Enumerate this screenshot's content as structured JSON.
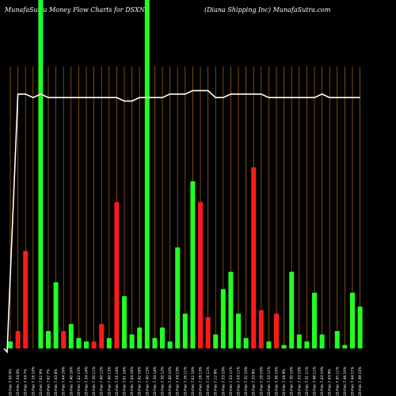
{
  "chart_data": {
    "type": "bar",
    "title": "MunafaSutra  Money Flow  Charts for DSXN",
    "subtitle": "(Diana  Shipping Inc) MunafaSutra.com",
    "colors": {
      "up": "#22ff22",
      "down": "#ff1a1a",
      "grid": "#b06a18",
      "line": "#ffffff",
      "background": "#000000"
    },
    "grid": true,
    "ylim": [
      0,
      100
    ],
    "categories": [
      "20-Feb 7.00 0%",
      "20-Feb 7.04 0%",
      "20-Feb 7.54 7%",
      "20-Feb 7.28 10%",
      "20-Feb 7.62 6%",
      "20-Feb 7.62 7%",
      "20-Feb 7.43 8%",
      "20-Feb 7.44 16%",
      "20-Feb 7.40 16%",
      "20-Feb 7.42 15%",
      "20-Feb 7.34 14%",
      "20-Feb 7.30 11%",
      "20-Feb 7.40 12%",
      "20-Feb 7.40 13%",
      "20-Feb 7.26 14%",
      "20-Feb 7.61 16%",
      "20-Feb 7.44 16%",
      "20-Feb 7.42 16%",
      "20-Feb 7.40 15%",
      "20-Feb 7.34 14%",
      "20-Feb 7.30 12%",
      "20-Feb 7.40 10%",
      "20-Feb 7.34 13%",
      "20-Feb 7.26 11%",
      "20-Feb 7.62 16%",
      "20-Feb 7.28 13%",
      "20-Feb 7.16 11%",
      "20-Feb 7.12 9%",
      "20-Feb 7.33 10%",
      "20-Feb 7.33 11%",
      "20-Feb 7.54 11%",
      "20-Feb 7.32 10%",
      "20-Feb 7.33 9%",
      "20-Feb 7.29 10%",
      "20-Feb 7.33 11%",
      "20-Feb 7.36 10%",
      "20-Feb 7.38 9%",
      "20-Feb 7.30 10%",
      "20-Feb 7.33 10%",
      "20-Feb 7.31 11%",
      "20-Feb 7.46 11%",
      "20-Feb 7.43 10%",
      "20-Feb 7.43 9%",
      "20-Feb 7.45 11%",
      "20-Feb 7.46 10%",
      "20-Feb 7.44 11%",
      "20-Feb 7.49 10%"
    ],
    "values": [
      2,
      5,
      28,
      0,
      100,
      5,
      19,
      5,
      7,
      3,
      2,
      2,
      7,
      3,
      42,
      15,
      4,
      6,
      100,
      3,
      6,
      2,
      29,
      10,
      48,
      42,
      9,
      4,
      17,
      22,
      10,
      3,
      52,
      11,
      2,
      10,
      1,
      22,
      4,
      2,
      16,
      4,
      0,
      5,
      1,
      16,
      12
    ],
    "direction": [
      "up",
      "down",
      "down",
      "up",
      "up",
      "up",
      "up",
      "down",
      "up",
      "up",
      "up",
      "down",
      "down",
      "up",
      "down",
      "up",
      "up",
      "up",
      "up",
      "up",
      "up",
      "up",
      "up",
      "up",
      "up",
      "down",
      "down",
      "up",
      "up",
      "up",
      "up",
      "up",
      "down",
      "down",
      "up",
      "down",
      "up",
      "up",
      "up",
      "up",
      "up",
      "up",
      "up",
      "up",
      "up",
      "up",
      "up"
    ],
    "line": [
      -1,
      73,
      73,
      72,
      73,
      72,
      72,
      72,
      72,
      72,
      72,
      72,
      72,
      72,
      72,
      71,
      71,
      72,
      72,
      72,
      72,
      73,
      73,
      73,
      74,
      74,
      74,
      72,
      72,
      73,
      73,
      73,
      73,
      73,
      72,
      72,
      72,
      72,
      72,
      72,
      72,
      73,
      72,
      72,
      72,
      72,
      72
    ]
  }
}
